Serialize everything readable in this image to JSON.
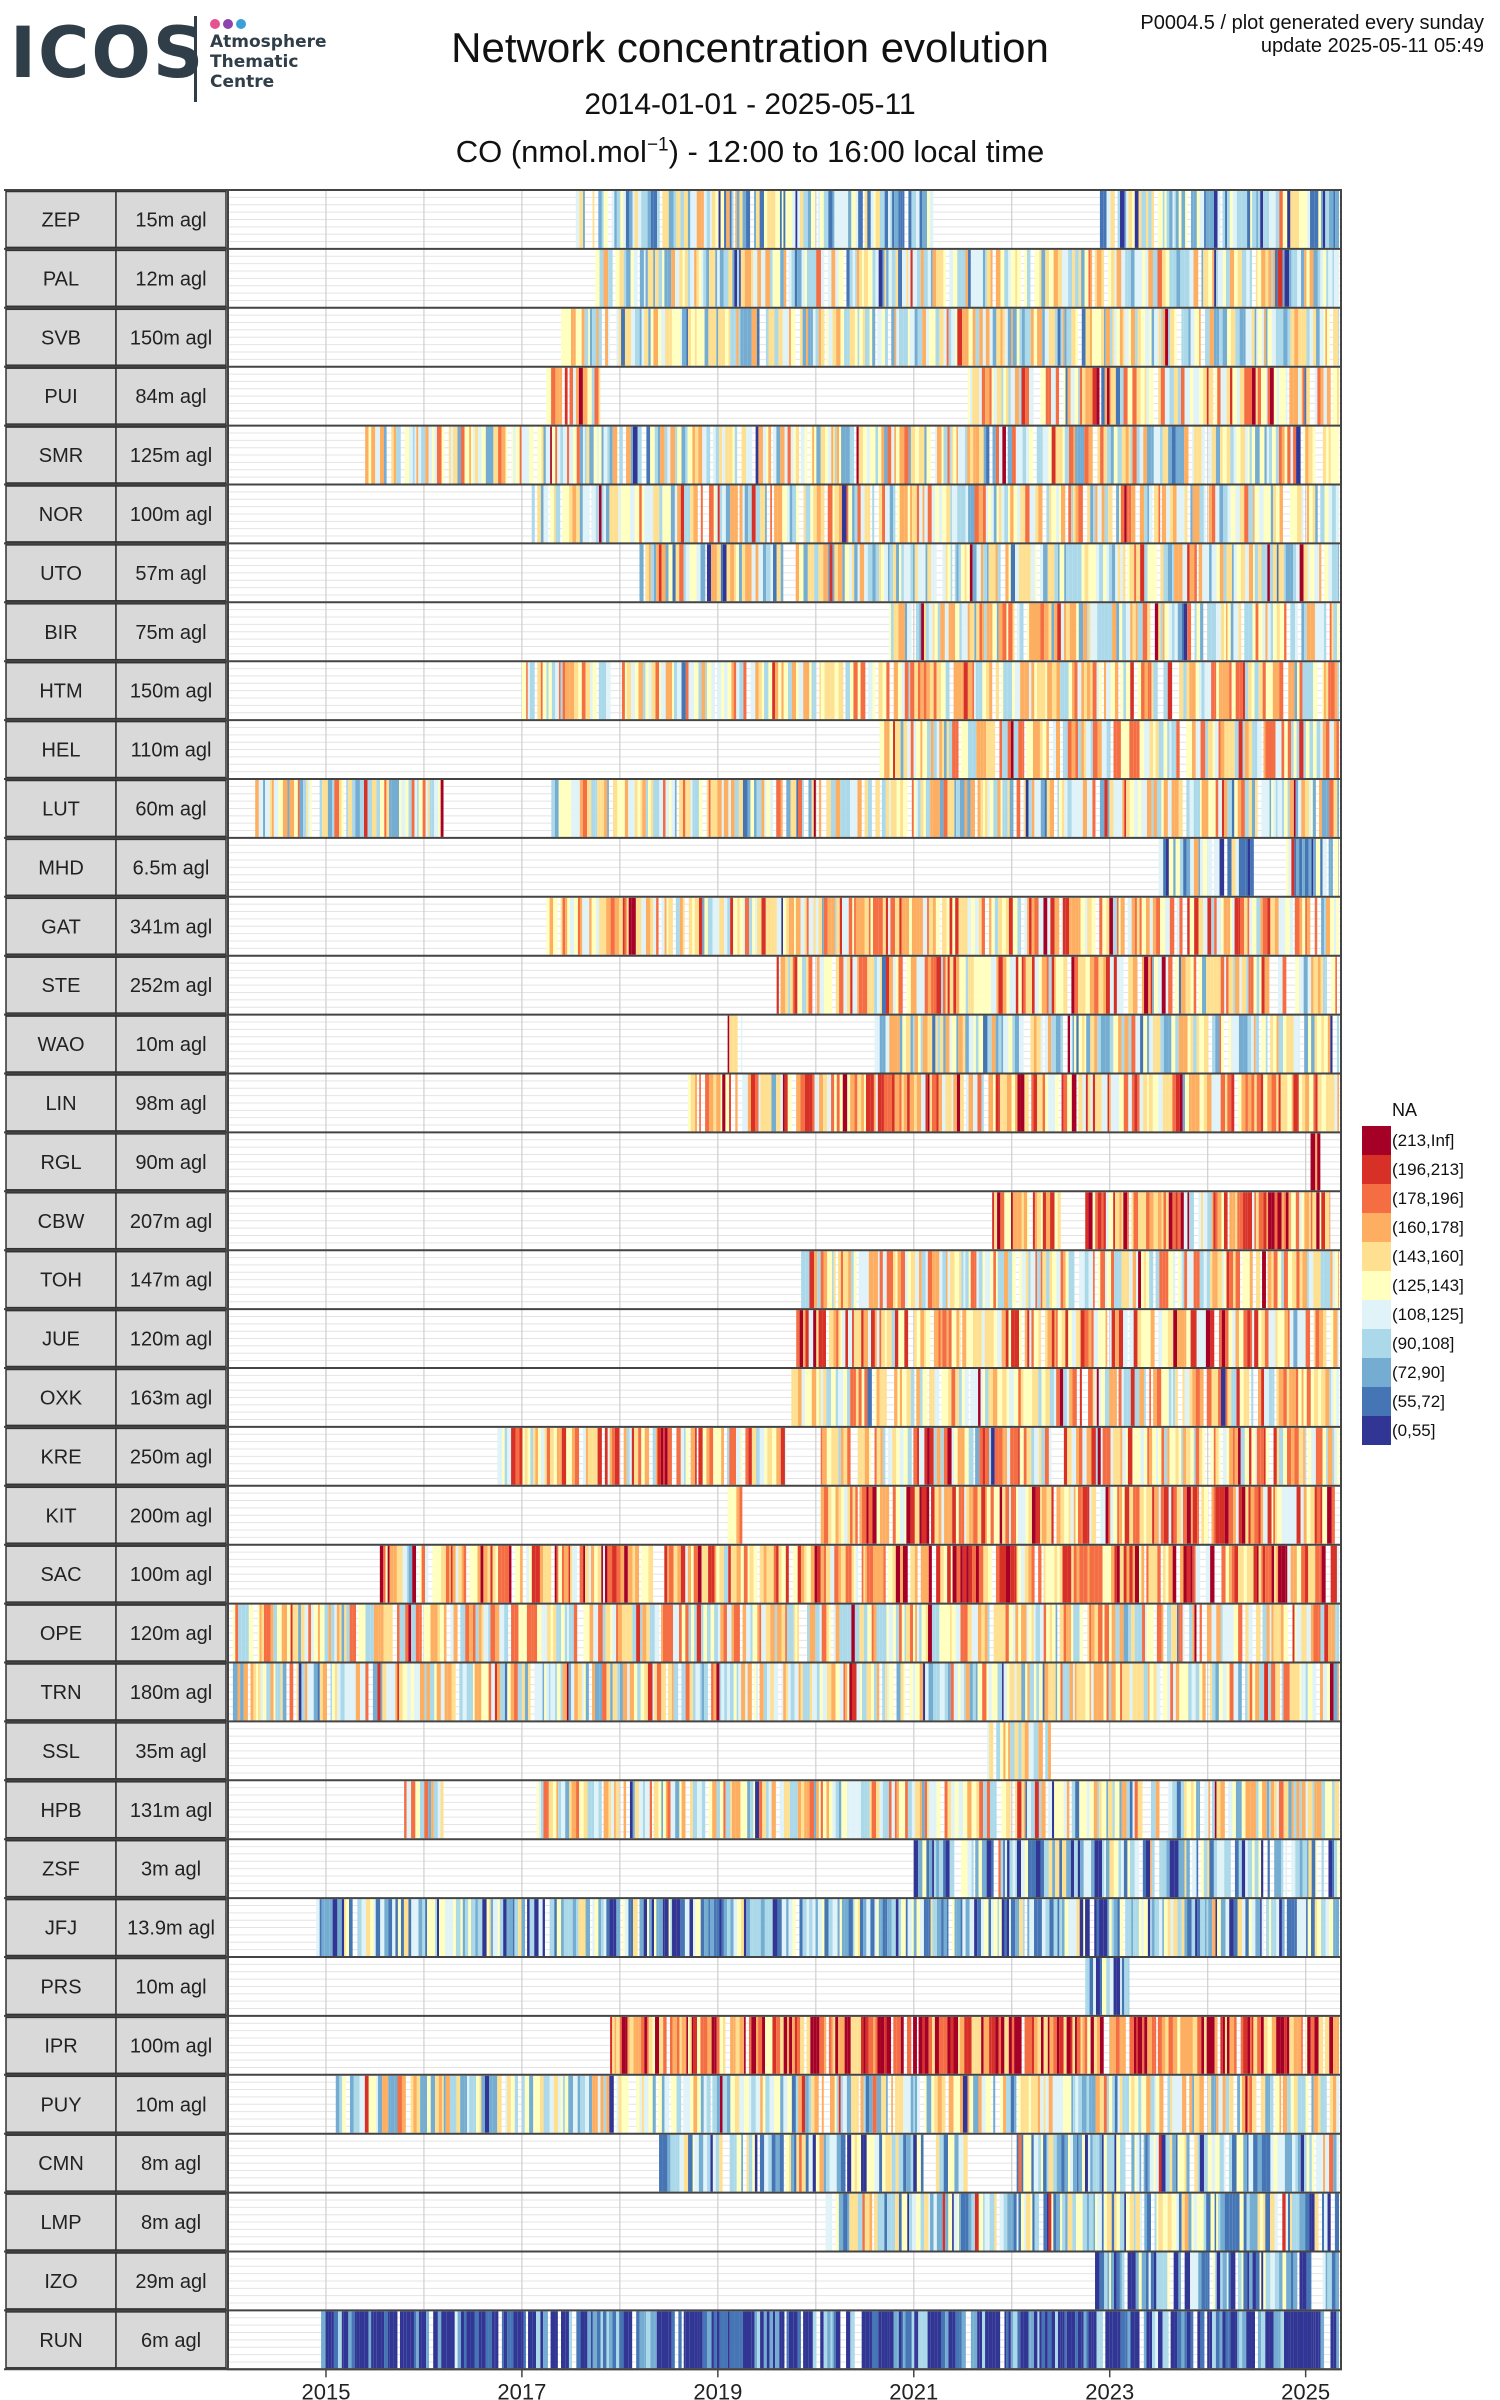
{
  "header": {
    "logo_word": "ICOS",
    "logo_sub": "Atmosphere Thematic Centre",
    "logo_dots": [
      "#e6528f",
      "#8e44ad",
      "#3aa0d8"
    ],
    "title": "Network concentration evolution",
    "date_range": "2014-01-01 - 2025-05-11",
    "subtitle_pre": "CO (nmol.mol",
    "subtitle_exp": "−1",
    "subtitle_post": ") - 12:00 to 16:00 local time",
    "meta_line1": "P0004.5 / plot generated every sunday",
    "meta_line2": "update  2025-05-11 05:49"
  },
  "legend": {
    "title": "NA",
    "bins": [
      {
        "label": "(213,Inf]",
        "color": "#a50026"
      },
      {
        "label": "(196,213]",
        "color": "#d73027"
      },
      {
        "label": "(178,196]",
        "color": "#f46d43"
      },
      {
        "label": "(160,178]",
        "color": "#fdae61"
      },
      {
        "label": "(143,160]",
        "color": "#fee090"
      },
      {
        "label": "(125,143]",
        "color": "#ffffbf"
      },
      {
        "label": "(108,125]",
        "color": "#e0f3f8"
      },
      {
        "label": "(90,108]",
        "color": "#abd9e9"
      },
      {
        "label": "(72,90]",
        "color": "#74add1"
      },
      {
        "label": "(55,72]",
        "color": "#4575b4"
      },
      {
        "label": "(0,55]",
        "color": "#313695"
      }
    ]
  },
  "chart_data": {
    "type": "heatmap",
    "title": "Network concentration evolution",
    "x_axis": {
      "start": "2014-01-01",
      "end": "2025-05-11",
      "ticks": [
        "2015",
        "2017",
        "2019",
        "2021",
        "2023",
        "2025"
      ]
    },
    "stations": [
      {
        "code": "ZEP",
        "height": "15m agl",
        "spans": [
          [
            2017.55,
            2021.2
          ],
          [
            2022.9,
            2025.4
          ]
        ],
        "level": 0.35
      },
      {
        "code": "PAL",
        "height": "12m agl",
        "spans": [
          [
            2017.75,
            2025.4
          ]
        ],
        "level": 0.45
      },
      {
        "code": "SVB",
        "height": "150m agl",
        "spans": [
          [
            2017.4,
            2025.4
          ]
        ],
        "level": 0.45
      },
      {
        "code": "PUI",
        "height": "84m agl",
        "spans": [
          [
            2017.25,
            2017.8
          ],
          [
            2021.55,
            2025.4
          ]
        ],
        "level": 0.55
      },
      {
        "code": "SMR",
        "height": "125m agl",
        "spans": [
          [
            2015.4,
            2025.4
          ]
        ],
        "level": 0.5
      },
      {
        "code": "NOR",
        "height": "100m agl",
        "spans": [
          [
            2017.1,
            2025.4
          ]
        ],
        "level": 0.5
      },
      {
        "code": "UTO",
        "height": "57m agl",
        "spans": [
          [
            2018.2,
            2025.4
          ]
        ],
        "level": 0.45
      },
      {
        "code": "BIR",
        "height": "75m agl",
        "spans": [
          [
            2020.75,
            2025.4
          ]
        ],
        "level": 0.5
      },
      {
        "code": "HTM",
        "height": "150m agl",
        "spans": [
          [
            2017.0,
            2025.4
          ]
        ],
        "level": 0.55
      },
      {
        "code": "HEL",
        "height": "110m agl",
        "spans": [
          [
            2020.65,
            2025.4
          ]
        ],
        "level": 0.55
      },
      {
        "code": "LUT",
        "height": "60m agl",
        "spans": [
          [
            2014.25,
            2016.2
          ],
          [
            2017.3,
            2025.4
          ]
        ],
        "level": 0.5
      },
      {
        "code": "MHD",
        "height": "6.5m agl",
        "spans": [
          [
            2023.5,
            2024.5
          ],
          [
            2024.8,
            2025.4
          ]
        ],
        "level": 0.3
      },
      {
        "code": "GAT",
        "height": "341m agl",
        "spans": [
          [
            2017.25,
            2025.4
          ]
        ],
        "level": 0.6
      },
      {
        "code": "STE",
        "height": "252m agl",
        "spans": [
          [
            2019.6,
            2025.4
          ]
        ],
        "level": 0.6
      },
      {
        "code": "WAO",
        "height": "10m agl",
        "spans": [
          [
            2019.1,
            2019.25
          ],
          [
            2020.6,
            2025.4
          ]
        ],
        "level": 0.45
      },
      {
        "code": "LIN",
        "height": "98m agl",
        "spans": [
          [
            2018.65,
            2025.4
          ]
        ],
        "level": 0.65
      },
      {
        "code": "RGL",
        "height": "90m agl",
        "spans": [
          [
            2025.05,
            2025.15
          ]
        ],
        "level": 0.9
      },
      {
        "code": "CBW",
        "height": "207m agl",
        "spans": [
          [
            2021.8,
            2022.5
          ],
          [
            2022.75,
            2025.25
          ]
        ],
        "level": 0.7
      },
      {
        "code": "TOH",
        "height": "147m agl",
        "spans": [
          [
            2019.85,
            2025.4
          ]
        ],
        "level": 0.55
      },
      {
        "code": "JUE",
        "height": "120m agl",
        "spans": [
          [
            2019.8,
            2025.4
          ]
        ],
        "level": 0.65
      },
      {
        "code": "OXK",
        "height": "163m agl",
        "spans": [
          [
            2019.75,
            2025.4
          ]
        ],
        "level": 0.55
      },
      {
        "code": "KRE",
        "height": "250m agl",
        "spans": [
          [
            2016.75,
            2019.7
          ],
          [
            2020.05,
            2025.4
          ]
        ],
        "level": 0.6
      },
      {
        "code": "KIT",
        "height": "200m agl",
        "spans": [
          [
            2019.1,
            2019.25
          ],
          [
            2020.05,
            2025.4
          ]
        ],
        "level": 0.65
      },
      {
        "code": "SAC",
        "height": "100m agl",
        "spans": [
          [
            2015.55,
            2025.4
          ]
        ],
        "level": 0.7
      },
      {
        "code": "OPE",
        "height": "120m agl",
        "spans": [
          [
            2014.05,
            2025.4
          ]
        ],
        "level": 0.55
      },
      {
        "code": "TRN",
        "height": "180m agl",
        "spans": [
          [
            2014.05,
            2025.4
          ]
        ],
        "level": 0.5
      },
      {
        "code": "SSL",
        "height": "35m agl",
        "spans": [
          [
            2021.75,
            2022.4
          ]
        ],
        "level": 0.5
      },
      {
        "code": "HPB",
        "height": "131m agl",
        "spans": [
          [
            2015.75,
            2016.2
          ],
          [
            2017.15,
            2025.4
          ]
        ],
        "level": 0.5
      },
      {
        "code": "ZSF",
        "height": "3m agl",
        "spans": [
          [
            2021.0,
            2025.4
          ]
        ],
        "level": 0.3
      },
      {
        "code": "JFJ",
        "height": "13.9m agl",
        "spans": [
          [
            2014.9,
            2025.4
          ]
        ],
        "level": 0.3
      },
      {
        "code": "PRS",
        "height": "10m agl",
        "spans": [
          [
            2022.75,
            2023.2
          ]
        ],
        "level": 0.25
      },
      {
        "code": "IPR",
        "height": "100m agl",
        "spans": [
          [
            2017.9,
            2025.4
          ]
        ],
        "level": 0.8
      },
      {
        "code": "PUY",
        "height": "10m agl",
        "spans": [
          [
            2015.1,
            2025.4
          ]
        ],
        "level": 0.45
      },
      {
        "code": "CMN",
        "height": "8m agl",
        "spans": [
          [
            2018.4,
            2021.55
          ],
          [
            2022.05,
            2025.4
          ]
        ],
        "level": 0.35
      },
      {
        "code": "LMP",
        "height": "8m agl",
        "spans": [
          [
            2020.1,
            2025.4
          ]
        ],
        "level": 0.35
      },
      {
        "code": "IZO",
        "height": "29m agl",
        "spans": [
          [
            2022.85,
            2025.4
          ]
        ],
        "level": 0.25
      },
      {
        "code": "RUN",
        "height": "6m agl",
        "spans": [
          [
            2014.95,
            2025.4
          ]
        ],
        "level": 0.05
      }
    ]
  }
}
